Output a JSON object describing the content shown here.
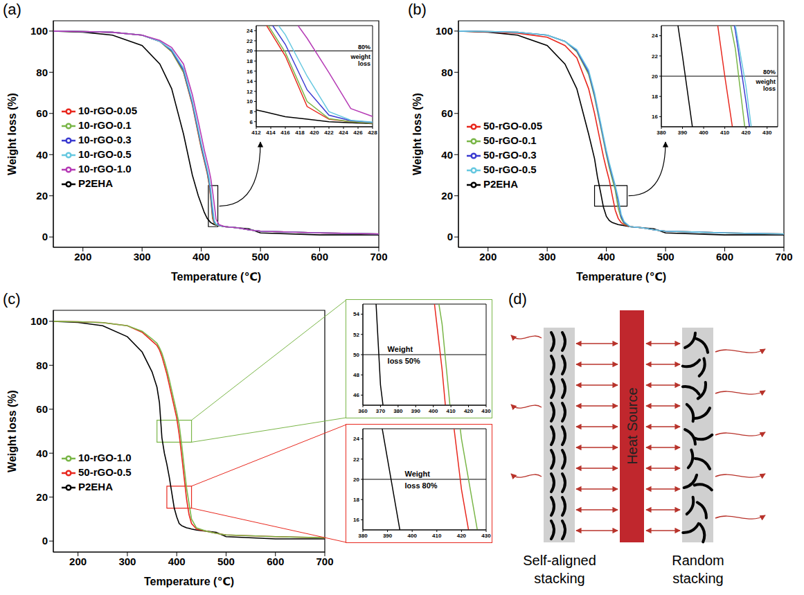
{
  "chart_data": [
    {
      "panel": "(a)",
      "type": "line",
      "xlabel": "Temperature (℃)",
      "ylabel": "Weight loss (%)",
      "x": [
        150,
        200,
        250,
        300,
        330,
        350,
        370,
        385,
        395,
        400,
        405,
        410,
        413,
        416,
        419,
        422,
        425,
        430,
        440,
        460,
        480,
        500,
        600,
        700
      ],
      "series": [
        {
          "name": "P2EHA",
          "color": "#000000",
          "values": [
            100,
            99.5,
            98,
            93,
            84,
            72,
            50,
            30,
            20,
            16,
            12,
            9,
            8,
            7,
            6.5,
            6,
            5.8,
            5.5,
            5,
            4.5,
            4,
            2,
            1,
            1
          ]
        },
        {
          "name": "10-rGO-0.05",
          "color": "#e8281e",
          "values": [
            100,
            99.8,
            99.4,
            98,
            95,
            90,
            80,
            64,
            50,
            43,
            37,
            31,
            26,
            19,
            9,
            6.5,
            6,
            5.5,
            5,
            4.5,
            3.5,
            2.8,
            2,
            1.5
          ]
        },
        {
          "name": "10-rGO-0.1",
          "color": "#7ab648",
          "values": [
            100,
            99.8,
            99.4,
            98,
            95,
            90,
            80,
            64.5,
            50.5,
            43.5,
            37.5,
            31.5,
            26.5,
            19.7,
            10,
            6.6,
            6,
            5.5,
            5,
            4.5,
            3.5,
            2.8,
            2,
            1.5
          ]
        },
        {
          "name": "10-rGO-0.3",
          "color": "#3a3ad0",
          "values": [
            100,
            99.8,
            99.4,
            98,
            95,
            90.5,
            81,
            65,
            51.4,
            44.4,
            38.2,
            32.2,
            27.7,
            21.3,
            12.3,
            7.3,
            6.2,
            5.6,
            5,
            4.5,
            3.5,
            2.8,
            2,
            1.5
          ]
        },
        {
          "name": "10-rGO-0.5",
          "color": "#66c8e0",
          "values": [
            100,
            99.8,
            99.4,
            98,
            95,
            91,
            82,
            66,
            52.5,
            45.5,
            39.2,
            33.2,
            29,
            23.2,
            15,
            8,
            6.3,
            5.7,
            5,
            4.5,
            3.5,
            2.8,
            2,
            1.5
          ]
        },
        {
          "name": "10-rGO-1.0",
          "color": "#b53ab5",
          "values": [
            100,
            99.8,
            99.4,
            98,
            95.5,
            92,
            84,
            69,
            56,
            49.3,
            42.4,
            36.4,
            32.8,
            28.5,
            22.5,
            15.7,
            8.6,
            6,
            5,
            4.5,
            3.5,
            2.8,
            2,
            1.5
          ]
        }
      ],
      "xlim": [
        150,
        700
      ],
      "xticks": [
        200,
        300,
        400,
        500,
        600,
        700
      ],
      "ylim": [
        -5,
        105
      ],
      "yticks": [
        0,
        20,
        40,
        60,
        80,
        100
      ],
      "legend": "lower left",
      "insets": [
        {
          "type": "line",
          "xlim": [
            412,
            428
          ],
          "xticks": [
            412,
            414,
            416,
            418,
            420,
            422,
            424,
            426,
            428
          ],
          "ylim": [
            5,
            25
          ],
          "yticks": [
            6,
            8,
            10,
            12,
            14,
            16,
            18,
            20,
            22,
            24
          ],
          "reference_y": 20,
          "annotation": [
            "80%",
            "weight",
            "loss"
          ]
        }
      ]
    },
    {
      "panel": "(b)",
      "type": "line",
      "xlabel": "Temperature (℃)",
      "ylabel": "Weight loss (%)",
      "x": [
        150,
        200,
        250,
        300,
        330,
        350,
        370,
        380,
        385,
        390,
        395,
        400,
        405,
        410,
        415,
        420,
        425,
        430,
        440,
        460,
        480,
        500,
        600,
        700
      ],
      "series": [
        {
          "name": "P2EHA",
          "color": "#000000",
          "values": [
            100,
            99.5,
            98,
            93,
            84,
            72,
            50,
            38,
            29,
            22,
            14.5,
            10,
            8,
            7,
            6.5,
            6,
            5.8,
            5.5,
            5,
            4.5,
            4,
            2,
            1,
            1
          ]
        },
        {
          "name": "50-rGO-0.05",
          "color": "#e8281e",
          "values": [
            100,
            99.6,
            99,
            97,
            93,
            87,
            72,
            60,
            53,
            46,
            39,
            33,
            27.5,
            20,
            13,
            9,
            7,
            6,
            5,
            4.5,
            3.5,
            2.8,
            2,
            1.5
          ]
        },
        {
          "name": "50-rGO-0.1",
          "color": "#7ab648",
          "values": [
            100,
            99.8,
            99.4,
            98,
            95,
            90,
            79,
            68,
            61,
            54,
            47,
            40,
            33.5,
            28,
            22.7,
            14,
            9,
            6.5,
            5,
            4.5,
            3.5,
            2.8,
            2,
            1.5
          ]
        },
        {
          "name": "50-rGO-0.3",
          "color": "#3a3ad0",
          "values": [
            100,
            99.8,
            99.4,
            98,
            95,
            90.5,
            80,
            69,
            62,
            55,
            48,
            41,
            35,
            29.5,
            24.5,
            17.5,
            10,
            7,
            5,
            4.5,
            3.5,
            2.8,
            2,
            1.5
          ]
        },
        {
          "name": "50-rGO-0.5",
          "color": "#66c8e0",
          "values": [
            100,
            99.8,
            99.4,
            98,
            95,
            91,
            81,
            70,
            63,
            56,
            49,
            42,
            36,
            30.5,
            25,
            19,
            11,
            7.5,
            5,
            4.5,
            3.5,
            2.8,
            2,
            1.5
          ]
        }
      ],
      "xlim": [
        150,
        700
      ],
      "xticks": [
        200,
        300,
        400,
        500,
        600,
        700
      ],
      "ylim": [
        -5,
        105
      ],
      "yticks": [
        0,
        20,
        40,
        60,
        80,
        100
      ],
      "legend": "lower left",
      "insets": [
        {
          "type": "line",
          "xlim": [
            380,
            435
          ],
          "xticks": [
            380,
            390,
            400,
            410,
            420,
            430
          ],
          "ylim": [
            15,
            25
          ],
          "yticks": [
            16,
            18,
            20,
            22,
            24
          ],
          "reference_y": 20,
          "annotation": [
            "80%",
            "weight",
            "loss"
          ]
        }
      ]
    },
    {
      "panel": "(c)",
      "type": "line",
      "xlabel": "Temperature (℃)",
      "ylabel": "Weight loss (%)",
      "x": [
        150,
        200,
        250,
        300,
        330,
        350,
        360,
        365,
        370,
        375,
        380,
        385,
        390,
        395,
        400,
        405,
        410,
        415,
        420,
        425,
        430,
        440,
        460,
        480,
        500,
        600,
        700
      ],
      "series": [
        {
          "name": "P2EHA",
          "color": "#000000",
          "values": [
            100,
            99.5,
            98,
            93,
            86,
            77,
            70,
            63,
            47,
            40,
            35,
            29,
            22,
            15,
            11,
            8,
            7,
            6.5,
            6,
            5.8,
            5.5,
            5,
            4.5,
            4,
            2,
            1,
            1
          ]
        },
        {
          "name": "50-rGO-0.5",
          "color": "#e8281e",
          "values": [
            100,
            99.8,
            99.4,
            98,
            95,
            91,
            89,
            87,
            84,
            80,
            76,
            71,
            66,
            61,
            56,
            48.5,
            39,
            29,
            19,
            12,
            8,
            5.5,
            4.5,
            3.5,
            2.8,
            2,
            1.5
          ]
        },
        {
          "name": "10-rGO-1.0",
          "color": "#7ab648",
          "values": [
            100,
            99.8,
            99.4,
            98,
            95.5,
            92,
            90,
            88,
            85.5,
            82,
            78,
            73.5,
            68.5,
            63.5,
            58.5,
            53,
            44,
            34,
            24,
            17,
            10,
            6,
            4.5,
            3.5,
            2.8,
            2,
            1.5
          ]
        }
      ],
      "xlim": [
        150,
        700
      ],
      "xticks": [
        200,
        300,
        400,
        500,
        600,
        700
      ],
      "ylim": [
        -5,
        105
      ],
      "yticks": [
        0,
        20,
        40,
        60,
        80,
        100
      ],
      "legend": "lower left",
      "insets": [
        {
          "type": "line",
          "xlim": [
            360,
            430
          ],
          "xticks": [
            360,
            370,
            380,
            390,
            400,
            410,
            420,
            430
          ],
          "ylim": [
            45,
            55
          ],
          "yticks": [
            46,
            48,
            50,
            52,
            54
          ],
          "reference_y": 50,
          "annotation": [
            "Weight",
            "loss 50%"
          ],
          "color": "#7ab648"
        },
        {
          "type": "line",
          "xlim": [
            380,
            430
          ],
          "xticks": [
            380,
            390,
            400,
            410,
            420,
            430
          ],
          "ylim": [
            15,
            25
          ],
          "yticks": [
            16,
            18,
            20,
            22,
            24
          ],
          "reference_y": 20,
          "annotation": [
            "Weight",
            "loss 80%"
          ],
          "color": "#e8281e"
        }
      ]
    }
  ],
  "diagram": {
    "panel": "(d)",
    "heat_source": "Heat Source",
    "left_label": "Self-aligned stacking",
    "right_label": "Random stacking"
  }
}
